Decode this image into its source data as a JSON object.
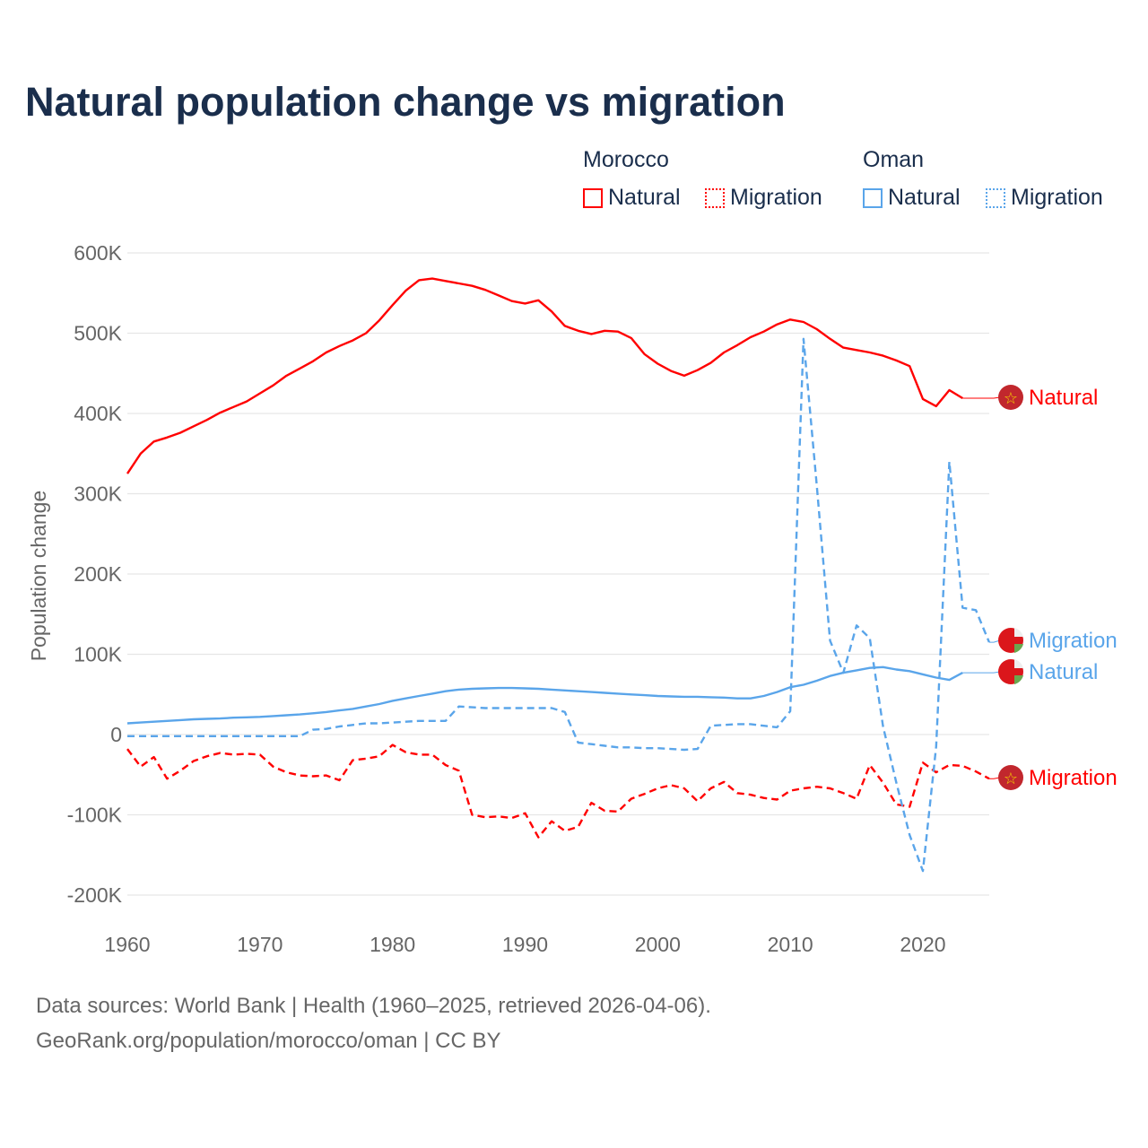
{
  "title": "Natural population change vs migration",
  "legend": {
    "groups": [
      {
        "name": "Morocco",
        "items": [
          "Natural",
          "Migration"
        ]
      },
      {
        "name": "Oman",
        "items": [
          "Natural",
          "Migration"
        ]
      }
    ]
  },
  "colors": {
    "morocco": "#ff0000",
    "oman": "#5aa5ea"
  },
  "footer": {
    "line1": "Data sources: World Bank | Health (1960–2025, retrieved 2026-04-06).",
    "line2": "GeoRank.org/population/morocco/oman | CC BY"
  },
  "chart_data": {
    "type": "line",
    "title": "Natural population change vs migration",
    "xlabel": "",
    "ylabel": "Population change",
    "xlim": [
      1960,
      2025
    ],
    "ylim": [
      -200000,
      600000
    ],
    "x_ticks": [
      "1960",
      "1970",
      "1980",
      "1990",
      "2000",
      "2010",
      "2020"
    ],
    "y_ticks": [
      "600K",
      "500K",
      "400K",
      "300K",
      "200K",
      "100K",
      "0",
      "-100K",
      "-200K"
    ],
    "grid": true,
    "series": [
      {
        "name": "Morocco Natural",
        "label": "Natural",
        "country": "morocco",
        "style": "solid",
        "start": 1960,
        "values_k": [
          325,
          350,
          365,
          370,
          376,
          384,
          392,
          401,
          408,
          415,
          425,
          435,
          447,
          456,
          465,
          476,
          484,
          491,
          500,
          516,
          535,
          553,
          566,
          568,
          565,
          562,
          559,
          554,
          547,
          540,
          537,
          541,
          527,
          509,
          503,
          499,
          503,
          502,
          494,
          474,
          462,
          453,
          447,
          454,
          463,
          476,
          485,
          495,
          502,
          511,
          517,
          514,
          505,
          493,
          482,
          479,
          476,
          472,
          466,
          459,
          418,
          409,
          429,
          419
        ]
      },
      {
        "name": "Morocco Migration",
        "label": "Migration",
        "country": "morocco",
        "style": "dashed",
        "start": 1960,
        "values_k": [
          -18,
          -40,
          -28,
          -55,
          -45,
          -33,
          -27,
          -23,
          -25,
          -24,
          -25,
          -40,
          -47,
          -51,
          -52,
          -51,
          -57,
          -32,
          -30,
          -27,
          -13,
          -22,
          -25,
          -25,
          -38,
          -45,
          -100,
          -103,
          -102,
          -104,
          -98,
          -128,
          -108,
          -120,
          -115,
          -85,
          -95,
          -96,
          -80,
          -74,
          -67,
          -63,
          -67,
          -83,
          -67,
          -59,
          -73,
          -75,
          -79,
          -81,
          -70,
          -67,
          -65,
          -67,
          -73,
          -80,
          -38,
          -60,
          -87,
          -90,
          -35,
          -47,
          -38,
          -39,
          -46,
          -55
        ]
      },
      {
        "name": "Oman Natural",
        "label": "Natural",
        "country": "oman",
        "style": "solid",
        "start": 1960,
        "values_k": [
          14,
          15,
          16,
          17,
          18,
          19,
          19.5,
          20,
          21,
          21.5,
          22,
          23,
          24,
          25,
          26.5,
          28,
          30,
          32,
          35,
          38,
          42,
          45,
          48,
          51,
          54,
          56,
          57,
          57.5,
          58,
          58,
          57.5,
          57,
          56,
          55,
          54,
          53,
          52,
          51,
          50,
          49,
          48,
          47.5,
          47,
          47,
          46.5,
          46,
          45,
          45,
          48,
          53,
          59,
          62,
          67,
          73,
          77,
          80,
          83,
          84,
          81,
          79,
          75,
          71,
          68,
          77
        ]
      },
      {
        "name": "Oman Migration",
        "label": "Migration",
        "country": "oman",
        "style": "dashed",
        "start": 1960,
        "values_k": [
          -2,
          -2,
          -2,
          -2,
          -2,
          -2,
          -2,
          -2,
          -2,
          -2,
          -2,
          -2,
          -2,
          -2,
          6,
          7,
          10,
          12,
          14,
          14,
          15,
          16,
          17,
          17,
          17,
          35,
          34,
          33,
          33,
          33,
          33,
          33,
          33,
          28,
          -10,
          -12,
          -14,
          -16,
          -16,
          -17,
          -17,
          -18,
          -19,
          -18,
          11,
          12,
          13,
          13,
          11,
          9,
          29,
          493,
          310,
          117,
          77,
          136,
          120,
          10,
          -60,
          -125,
          -170,
          -15,
          340,
          158,
          155,
          115
        ]
      }
    ]
  }
}
